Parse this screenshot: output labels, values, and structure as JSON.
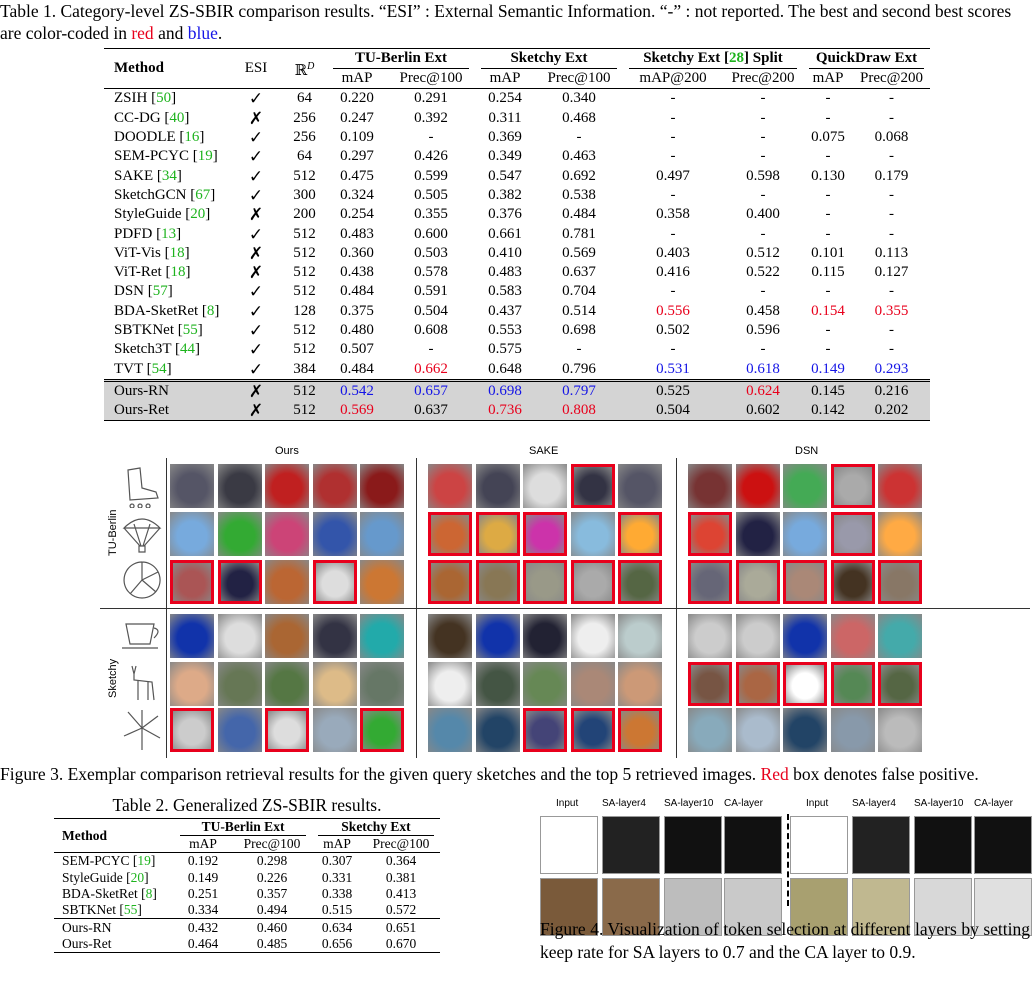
{
  "table1": {
    "caption_prefix": "Table 1. Category-level ZS-SBIR comparison results. “ESI” : External Semantic Information. “-” : not reported. The best and second best scores are color-coded in ",
    "caption_red": "red",
    "caption_and": " and ",
    "caption_blue": "blue",
    "caption_end": ".",
    "head": {
      "method": "Method",
      "esi": "ESI",
      "dim": "ℝ",
      "dim_sup": "D",
      "g1": "TU-Berlin Ext",
      "g2": "Sketchy Ext",
      "g3_a": "Sketchy Ext [",
      "g3_ref": "28",
      "g3_b": "] Split",
      "g4": "QuickDraw Ext",
      "s1": "mAP",
      "s2": "Prec@100",
      "s3": "mAP",
      "s4": "Prec@100",
      "s5": "mAP@200",
      "s6": "Prec@200",
      "s7": "mAP",
      "s8": "Prec@200"
    },
    "rows": [
      {
        "name": "ZSIH",
        "ref": "50",
        "esi": "✓",
        "d": "64",
        "v": [
          "0.220",
          "0.291",
          "0.254",
          "0.340",
          "-",
          "-",
          "-",
          "-"
        ]
      },
      {
        "name": "CC-DG",
        "ref": "40",
        "esi": "✗",
        "d": "256",
        "v": [
          "0.247",
          "0.392",
          "0.311",
          "0.468",
          "-",
          "-",
          "-",
          "-"
        ]
      },
      {
        "name": "DOODLE",
        "ref": "16",
        "esi": "✓",
        "d": "256",
        "v": [
          "0.109",
          "-",
          "0.369",
          "-",
          "-",
          "-",
          "0.075",
          "0.068"
        ]
      },
      {
        "name": "SEM-PCYC",
        "ref": "19",
        "esi": "✓",
        "d": "64",
        "v": [
          "0.297",
          "0.426",
          "0.349",
          "0.463",
          "-",
          "-",
          "-",
          "-"
        ]
      },
      {
        "name": "SAKE",
        "ref": "34",
        "esi": "✓",
        "d": "512",
        "v": [
          "0.475",
          "0.599",
          "0.547",
          "0.692",
          "0.497",
          "0.598",
          "0.130",
          "0.179"
        ]
      },
      {
        "name": "SketchGCN",
        "ref": "67",
        "esi": "✓",
        "d": "300",
        "v": [
          "0.324",
          "0.505",
          "0.382",
          "0.538",
          "-",
          "-",
          "-",
          "-"
        ]
      },
      {
        "name": "StyleGuide",
        "ref": "20",
        "esi": "✗",
        "d": "200",
        "v": [
          "0.254",
          "0.355",
          "0.376",
          "0.484",
          "0.358",
          "0.400",
          "-",
          "-"
        ]
      },
      {
        "name": "PDFD",
        "ref": "13",
        "esi": "✓",
        "d": "512",
        "v": [
          "0.483",
          "0.600",
          "0.661",
          "0.781",
          "-",
          "-",
          "-",
          "-"
        ]
      },
      {
        "name": "ViT-Vis",
        "ref": "18",
        "esi": "✗",
        "d": "512",
        "v": [
          "0.360",
          "0.503",
          "0.410",
          "0.569",
          "0.403",
          "0.512",
          "0.101",
          "0.113"
        ]
      },
      {
        "name": "ViT-Ret",
        "ref": "18",
        "esi": "✗",
        "d": "512",
        "v": [
          "0.438",
          "0.578",
          "0.483",
          "0.637",
          "0.416",
          "0.522",
          "0.115",
          "0.127"
        ]
      },
      {
        "name": "DSN",
        "ref": "57",
        "esi": "✓",
        "d": "512",
        "v": [
          "0.484",
          "0.591",
          "0.583",
          "0.704",
          "-",
          "-",
          "-",
          "-"
        ]
      },
      {
        "name": "BDA-SketRet",
        "ref": "8",
        "esi": "✓",
        "d": "128",
        "v": [
          "0.375",
          "0.504",
          "0.437",
          "0.514",
          "0.556",
          "0.458",
          "0.154",
          "0.355"
        ],
        "c": [
          "",
          "",
          "",
          "",
          "r",
          "",
          "r",
          "r"
        ]
      },
      {
        "name": "SBTKNet",
        "ref": "55",
        "esi": "✓",
        "d": "512",
        "v": [
          "0.480",
          "0.608",
          "0.553",
          "0.698",
          "0.502",
          "0.596",
          "-",
          "-"
        ]
      },
      {
        "name": "Sketch3T",
        "ref": "44",
        "esi": "✓",
        "d": "512",
        "v": [
          "0.507",
          "-",
          "0.575",
          "-",
          "-",
          "-",
          "-",
          "-"
        ]
      },
      {
        "name": "TVT",
        "ref": "54",
        "esi": "✓",
        "d": "384",
        "v": [
          "0.484",
          "0.662",
          "0.648",
          "0.796",
          "0.531",
          "0.618",
          "0.149",
          "0.293"
        ],
        "c": [
          "",
          "r",
          "",
          "",
          "b",
          "b",
          "b",
          "b"
        ]
      }
    ],
    "ours": [
      {
        "name": "Ours-RN",
        "esi": "✗",
        "d": "512",
        "v": [
          "0.542",
          "0.657",
          "0.698",
          "0.797",
          "0.525",
          "0.624",
          "0.145",
          "0.216"
        ],
        "c": [
          "b",
          "b",
          "b",
          "b",
          "",
          "r",
          "",
          ""
        ]
      },
      {
        "name": "Ours-Ret",
        "esi": "✗",
        "d": "512",
        "v": [
          "0.569",
          "0.637",
          "0.736",
          "0.808",
          "0.504",
          "0.602",
          "0.142",
          "0.202"
        ],
        "c": [
          "r",
          "",
          "r",
          "r",
          "",
          "",
          "",
          ""
        ]
      }
    ]
  },
  "figure3": {
    "col_ours": "Ours",
    "col_sake": "SAKE",
    "col_dsn": "DSN",
    "row_tub": "TU-Berlin",
    "row_sketchy": "Sketchy",
    "caption_a": "Figure 3. Exemplar comparison retrieval results for the given query sketches and the top 5 retrieved images. ",
    "caption_red": "Red",
    "caption_b": " box denotes false positive.",
    "rows": [
      {
        "sketch": "inline-skate",
        "cells": [
          [
            "#556",
            "#3a3a44",
            "#c02020",
            "#b03030",
            "#8a1a1a"
          ],
          [
            "#c44",
            "#445",
            "#ddd",
            "#334",
            "#556"
          ],
          [
            "#733",
            "#c11",
            "#4a5",
            "#aaa",
            "#c33"
          ]
        ],
        "fp": [
          [
            0,
            0,
            0,
            0,
            0
          ],
          [
            0,
            0,
            0,
            1,
            0
          ],
          [
            0,
            0,
            0,
            1,
            0
          ]
        ]
      },
      {
        "sketch": "parachute",
        "cells": [
          [
            "#7ad",
            "#3a3",
            "#c47",
            "#35a",
            "#69c"
          ],
          [
            "#c63",
            "#da4",
            "#c3a",
            "#8bd",
            "#fa3"
          ],
          [
            "#d43",
            "#224",
            "#7ad",
            "#99a",
            "#fa4"
          ]
        ],
        "fp": [
          [
            0,
            0,
            0,
            0,
            0
          ],
          [
            1,
            1,
            1,
            0,
            1
          ],
          [
            1,
            0,
            0,
            1,
            0
          ]
        ]
      },
      {
        "sketch": "pizza",
        "cells": [
          [
            "#a55",
            "#224",
            "#b63",
            "#ddd",
            "#c73"
          ],
          [
            "#a63",
            "#875",
            "#998",
            "#aaa",
            "#564"
          ],
          [
            "#667",
            "#aa9",
            "#a87",
            "#432",
            "#876"
          ]
        ],
        "fp": [
          [
            1,
            1,
            0,
            1,
            0
          ],
          [
            1,
            1,
            1,
            1,
            1
          ],
          [
            1,
            1,
            1,
            1,
            1
          ]
        ]
      },
      {
        "sketch": "cup",
        "cells": [
          [
            "#13a",
            "#ddd",
            "#a63",
            "#334",
            "#2aa"
          ],
          [
            "#432",
            "#13a",
            "#223",
            "#eee",
            "#bcc"
          ],
          [
            "#ccc",
            "#ccc",
            "#13a",
            "#c66",
            "#4aa"
          ]
        ],
        "fp": [
          [
            0,
            0,
            0,
            0,
            0
          ],
          [
            0,
            0,
            0,
            0,
            0
          ],
          [
            0,
            0,
            0,
            0,
            0
          ]
        ]
      },
      {
        "sketch": "deer",
        "cells": [
          [
            "#da8",
            "#675",
            "#574",
            "#db8",
            "#676"
          ],
          [
            "#eee",
            "#454",
            "#685",
            "#a87",
            "#c97"
          ],
          [
            "#754",
            "#a64",
            "#fff",
            "#585",
            "#564"
          ]
        ],
        "fp": [
          [
            0,
            0,
            0,
            0,
            0
          ],
          [
            0,
            0,
            0,
            0,
            0
          ],
          [
            1,
            1,
            1,
            1,
            1
          ]
        ]
      },
      {
        "sketch": "windmill",
        "cells": [
          [
            "#ccc",
            "#46a",
            "#ddd",
            "#9ab",
            "#3a3"
          ],
          [
            "#58a",
            "#246",
            "#447",
            "#247",
            "#c73"
          ],
          [
            "#8ab",
            "#abc",
            "#246",
            "#89a",
            "#bbb"
          ]
        ],
        "fp": [
          [
            1,
            0,
            1,
            0,
            1
          ],
          [
            0,
            0,
            1,
            1,
            1
          ],
          [
            0,
            0,
            0,
            0,
            0
          ]
        ]
      }
    ]
  },
  "table2": {
    "caption": "Table 2. Generalized ZS-SBIR results.",
    "head": {
      "method": "Method",
      "g1": "TU-Berlin Ext",
      "g2": "Sketchy Ext",
      "s1": "mAP",
      "s2": "Prec@100",
      "s3": "mAP",
      "s4": "Prec@100"
    },
    "rows": [
      {
        "name": "SEM-PCYC",
        "ref": "19",
        "v": [
          "0.192",
          "0.298",
          "0.307",
          "0.364"
        ]
      },
      {
        "name": "StyleGuide",
        "ref": "20",
        "v": [
          "0.149",
          "0.226",
          "0.331",
          "0.381"
        ]
      },
      {
        "name": "BDA-SketRet",
        "ref": "8",
        "v": [
          "0.251",
          "0.357",
          "0.338",
          "0.413"
        ]
      },
      {
        "name": "SBTKNet",
        "ref": "55",
        "v": [
          "0.334",
          "0.494",
          "0.515",
          "0.572"
        ]
      }
    ],
    "ours": [
      {
        "name": "Ours-RN",
        "v": [
          "0.432",
          "0.460",
          "0.634",
          "0.651"
        ]
      },
      {
        "name": "Ours-Ret",
        "v": [
          "0.464",
          "0.485",
          "0.656",
          "0.670"
        ]
      }
    ]
  },
  "figure4": {
    "labels": [
      "Input",
      "SA-layer4",
      "SA-layer10",
      "CA-layer",
      "Input",
      "SA-layer4",
      "SA-layer10",
      "CA-layer"
    ],
    "caption": "Figure 4.  Visualization of token selection at different layers by setting keep rate for SA layers to 0.7 and the CA layer to 0.9."
  }
}
